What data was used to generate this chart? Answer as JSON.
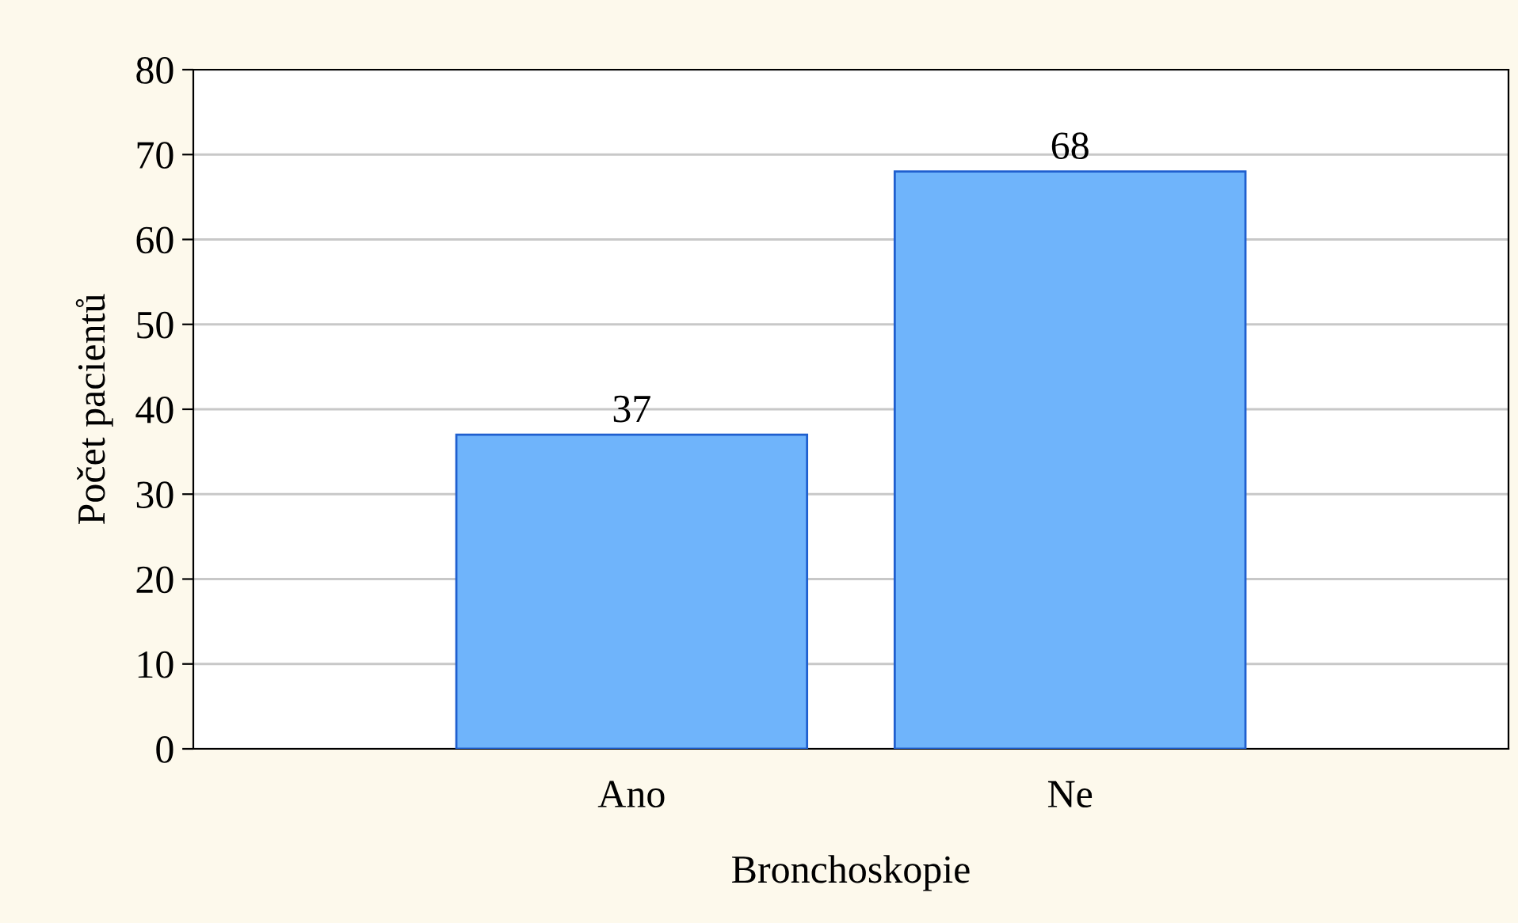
{
  "chart_data": {
    "type": "bar",
    "xlabel": "Bronchoskopie",
    "ylabel": "Počet pacientů",
    "categories": [
      "Ano",
      "Ne"
    ],
    "values": [
      37,
      68
    ],
    "color": "#6fb4fb",
    "ylim": [
      0,
      80
    ],
    "yticks": [
      0,
      10,
      20,
      30,
      40,
      50,
      60,
      70,
      80
    ],
    "grid": "y",
    "data_labels": true
  }
}
